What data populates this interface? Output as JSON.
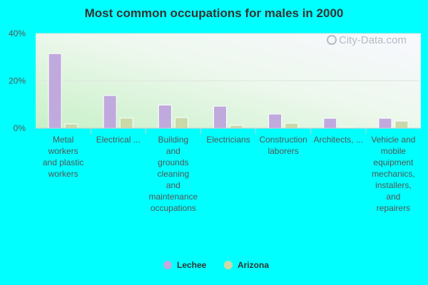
{
  "chart_data": {
    "type": "bar",
    "title": "Most common occupations for males in 2000",
    "xlabel": "",
    "ylabel": "",
    "ylim": [
      0,
      40
    ],
    "yticks": [
      "0%",
      "20%",
      "40%"
    ],
    "grid": true,
    "legend_position": "bottom",
    "categories": [
      "Metal workers and plastic workers",
      "Electrical ...",
      "Building and grounds cleaning and maintenance occupations",
      "Electricians",
      "Construction laborers",
      "Architects, ...",
      "Vehicle and mobile equipment mechanics, installers, and repairers"
    ],
    "category_lines": [
      [
        "Metal",
        "workers",
        "and plastic",
        "workers"
      ],
      [
        "Electrical ..."
      ],
      [
        "Building",
        "and",
        "grounds",
        "cleaning",
        "and",
        "maintenance",
        "occupations"
      ],
      [
        "Electricians"
      ],
      [
        "Construction",
        "laborers"
      ],
      [
        "Architects, ..."
      ],
      [
        "Vehicle and",
        "mobile",
        "equipment",
        "mechanics,",
        "installers,",
        "and",
        "repairers"
      ]
    ],
    "series": [
      {
        "name": "Lechee",
        "color": "#c0a9dc",
        "values": [
          31.5,
          13.8,
          9.8,
          9.3,
          6.0,
          4.2,
          4.2
        ]
      },
      {
        "name": "Arizona",
        "color": "#c9d9a8",
        "values": [
          1.8,
          4.3,
          4.5,
          1.2,
          2.1,
          0.4,
          3.0
        ]
      }
    ]
  },
  "watermark": "City-Data.com"
}
